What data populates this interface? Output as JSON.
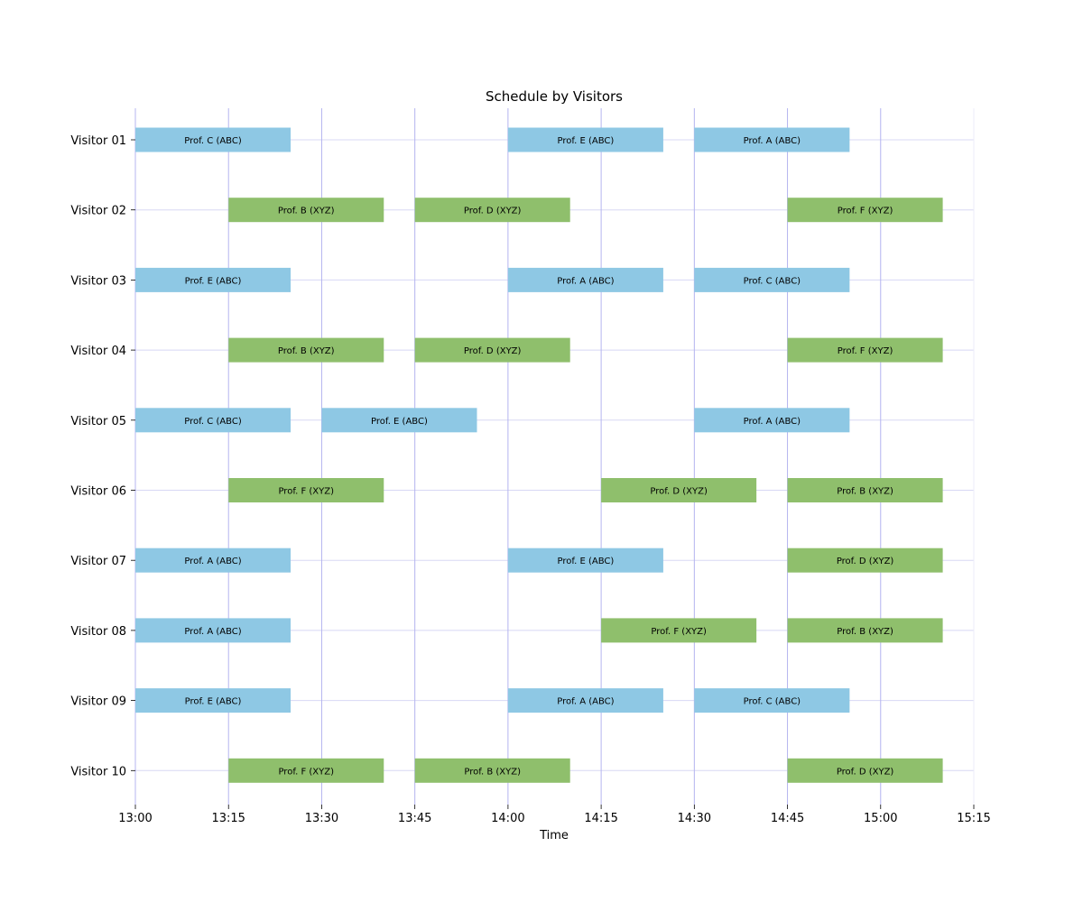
{
  "chart_data": {
    "type": "bar",
    "title": "Schedule by Visitors",
    "xlabel": "Time",
    "ylabel": "",
    "xlim": [
      "13:00",
      "15:15"
    ],
    "x_ticks": [
      "13:00",
      "13:15",
      "13:30",
      "13:45",
      "14:00",
      "14:15",
      "14:30",
      "14:45",
      "15:00",
      "15:15"
    ],
    "grid": true,
    "colors": {
      "ABC": "#8ec8e4",
      "XYZ": "#8fbf6c",
      "grid_vertical": "#b4b4f0",
      "grid_horizontal": "#d8d8f4"
    },
    "visitors": [
      {
        "name": "Visitor 01",
        "meetings": [
          {
            "label": "Prof. C (ABC)",
            "group": "ABC",
            "start": "13:00",
            "end": "13:25"
          },
          {
            "label": "Prof. E (ABC)",
            "group": "ABC",
            "start": "14:00",
            "end": "14:25"
          },
          {
            "label": "Prof. A (ABC)",
            "group": "ABC",
            "start": "14:30",
            "end": "14:55"
          }
        ]
      },
      {
        "name": "Visitor 02",
        "meetings": [
          {
            "label": "Prof. B (XYZ)",
            "group": "XYZ",
            "start": "13:15",
            "end": "13:40"
          },
          {
            "label": "Prof. D (XYZ)",
            "group": "XYZ",
            "start": "13:45",
            "end": "14:10"
          },
          {
            "label": "Prof. F (XYZ)",
            "group": "XYZ",
            "start": "14:45",
            "end": "15:10"
          }
        ]
      },
      {
        "name": "Visitor 03",
        "meetings": [
          {
            "label": "Prof. E (ABC)",
            "group": "ABC",
            "start": "13:00",
            "end": "13:25"
          },
          {
            "label": "Prof. A (ABC)",
            "group": "ABC",
            "start": "14:00",
            "end": "14:25"
          },
          {
            "label": "Prof. C (ABC)",
            "group": "ABC",
            "start": "14:30",
            "end": "14:55"
          }
        ]
      },
      {
        "name": "Visitor 04",
        "meetings": [
          {
            "label": "Prof. B (XYZ)",
            "group": "XYZ",
            "start": "13:15",
            "end": "13:40"
          },
          {
            "label": "Prof. D (XYZ)",
            "group": "XYZ",
            "start": "13:45",
            "end": "14:10"
          },
          {
            "label": "Prof. F (XYZ)",
            "group": "XYZ",
            "start": "14:45",
            "end": "15:10"
          }
        ]
      },
      {
        "name": "Visitor 05",
        "meetings": [
          {
            "label": "Prof. C (ABC)",
            "group": "ABC",
            "start": "13:00",
            "end": "13:25"
          },
          {
            "label": "Prof. E (ABC)",
            "group": "ABC",
            "start": "13:30",
            "end": "13:55"
          },
          {
            "label": "Prof. A (ABC)",
            "group": "ABC",
            "start": "14:30",
            "end": "14:55"
          }
        ]
      },
      {
        "name": "Visitor 06",
        "meetings": [
          {
            "label": "Prof. F (XYZ)",
            "group": "XYZ",
            "start": "13:15",
            "end": "13:40"
          },
          {
            "label": "Prof. D (XYZ)",
            "group": "XYZ",
            "start": "14:15",
            "end": "14:40"
          },
          {
            "label": "Prof. B (XYZ)",
            "group": "XYZ",
            "start": "14:45",
            "end": "15:10"
          }
        ]
      },
      {
        "name": "Visitor 07",
        "meetings": [
          {
            "label": "Prof. A (ABC)",
            "group": "ABC",
            "start": "13:00",
            "end": "13:25"
          },
          {
            "label": "Prof. E (ABC)",
            "group": "ABC",
            "start": "14:00",
            "end": "14:25"
          },
          {
            "label": "Prof. D (XYZ)",
            "group": "XYZ",
            "start": "14:45",
            "end": "15:10"
          }
        ]
      },
      {
        "name": "Visitor 08",
        "meetings": [
          {
            "label": "Prof. A (ABC)",
            "group": "ABC",
            "start": "13:00",
            "end": "13:25"
          },
          {
            "label": "Prof. F (XYZ)",
            "group": "XYZ",
            "start": "14:15",
            "end": "14:40"
          },
          {
            "label": "Prof. B (XYZ)",
            "group": "XYZ",
            "start": "14:45",
            "end": "15:10"
          }
        ]
      },
      {
        "name": "Visitor 09",
        "meetings": [
          {
            "label": "Prof. E (ABC)",
            "group": "ABC",
            "start": "13:00",
            "end": "13:25"
          },
          {
            "label": "Prof. A (ABC)",
            "group": "ABC",
            "start": "14:00",
            "end": "14:25"
          },
          {
            "label": "Prof. C (ABC)",
            "group": "ABC",
            "start": "14:30",
            "end": "14:55"
          }
        ]
      },
      {
        "name": "Visitor 10",
        "meetings": [
          {
            "label": "Prof. F (XYZ)",
            "group": "XYZ",
            "start": "13:15",
            "end": "13:40"
          },
          {
            "label": "Prof. B (XYZ)",
            "group": "XYZ",
            "start": "13:45",
            "end": "14:10"
          },
          {
            "label": "Prof. D (XYZ)",
            "group": "XYZ",
            "start": "14:45",
            "end": "15:10"
          }
        ]
      }
    ]
  }
}
